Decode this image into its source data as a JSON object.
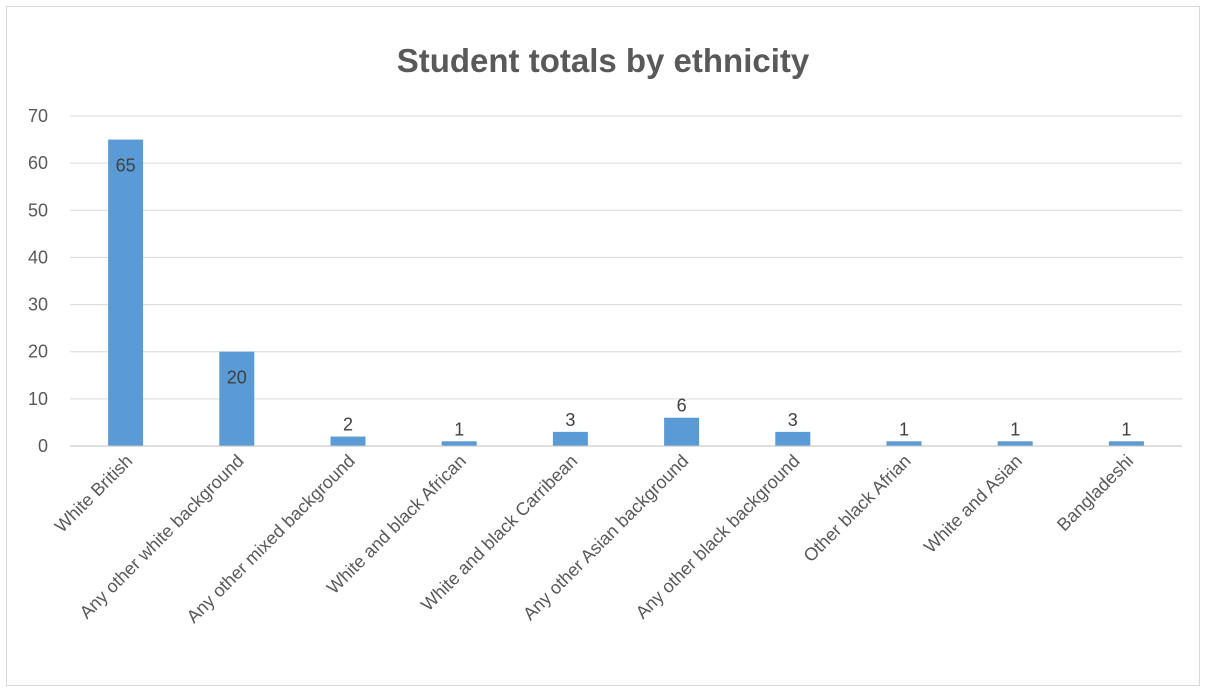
{
  "chart_data": {
    "type": "bar",
    "title": "Student totals by ethnicity",
    "categories": [
      "White British",
      "Any other white background",
      "Any other mixed background",
      "White and black African",
      "White and black Carribean",
      "Any other Asian background",
      "Any other black background",
      "Other black Afrian",
      "White and Asian",
      "Bangladeshi"
    ],
    "values": [
      65,
      20,
      2,
      1,
      3,
      6,
      3,
      1,
      1,
      1
    ],
    "data_labels": [
      "65",
      "20",
      "2",
      "1",
      "3",
      "6",
      "3",
      "1",
      "1",
      "1"
    ],
    "ylim": [
      0,
      70
    ],
    "yticks": [
      "0",
      "10",
      "20",
      "30",
      "40",
      "50",
      "60",
      "70"
    ],
    "xlabel": "",
    "ylabel": "",
    "grid": true,
    "legend": "none",
    "colors": {
      "bar": "#5b9bd5",
      "grid": "#d9d9d9",
      "text": "#595959"
    }
  }
}
